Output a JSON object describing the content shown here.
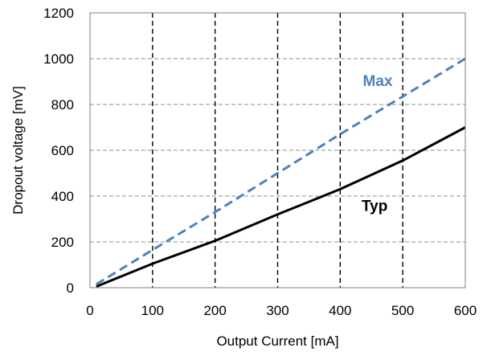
{
  "chart_data": {
    "type": "line",
    "title": "",
    "xlabel": "Output Current [mA]",
    "ylabel": "Dropout voltage [mV]",
    "xlim": [
      0,
      600
    ],
    "ylim": [
      0,
      1200
    ],
    "xticks": [
      0,
      100,
      200,
      300,
      400,
      500,
      600
    ],
    "yticks": [
      0,
      200,
      400,
      600,
      800,
      1000,
      1200
    ],
    "x_tick_labels": [
      "0",
      "100",
      "200",
      "300",
      "400",
      "500",
      "600"
    ],
    "y_tick_labels": [
      "0",
      "200",
      "400",
      "600",
      "800",
      "1000",
      "1200"
    ],
    "grid": {
      "vertical": "black-dashed",
      "horizontal": "gray-dashed"
    },
    "legend": "none",
    "series": [
      {
        "name": "Max",
        "color": "#4F81BD",
        "style": "dashed",
        "points": [
          [
            10,
            15
          ],
          [
            100,
            165
          ],
          [
            200,
            330
          ],
          [
            300,
            500
          ],
          [
            400,
            670
          ],
          [
            500,
            835
          ],
          [
            600,
            1000
          ]
        ]
      },
      {
        "name": "Typ",
        "color": "#000000",
        "style": "solid",
        "points": [
          [
            10,
            5
          ],
          [
            100,
            105
          ],
          [
            200,
            205
          ],
          [
            300,
            320
          ],
          [
            400,
            430
          ],
          [
            500,
            555
          ],
          [
            600,
            700
          ]
        ]
      }
    ],
    "annotations": [
      {
        "text": "Max",
        "x": 460,
        "y": 880,
        "color": "#4F81BD"
      },
      {
        "text": "Typ",
        "x": 455,
        "y": 335,
        "color": "#000000"
      }
    ]
  }
}
